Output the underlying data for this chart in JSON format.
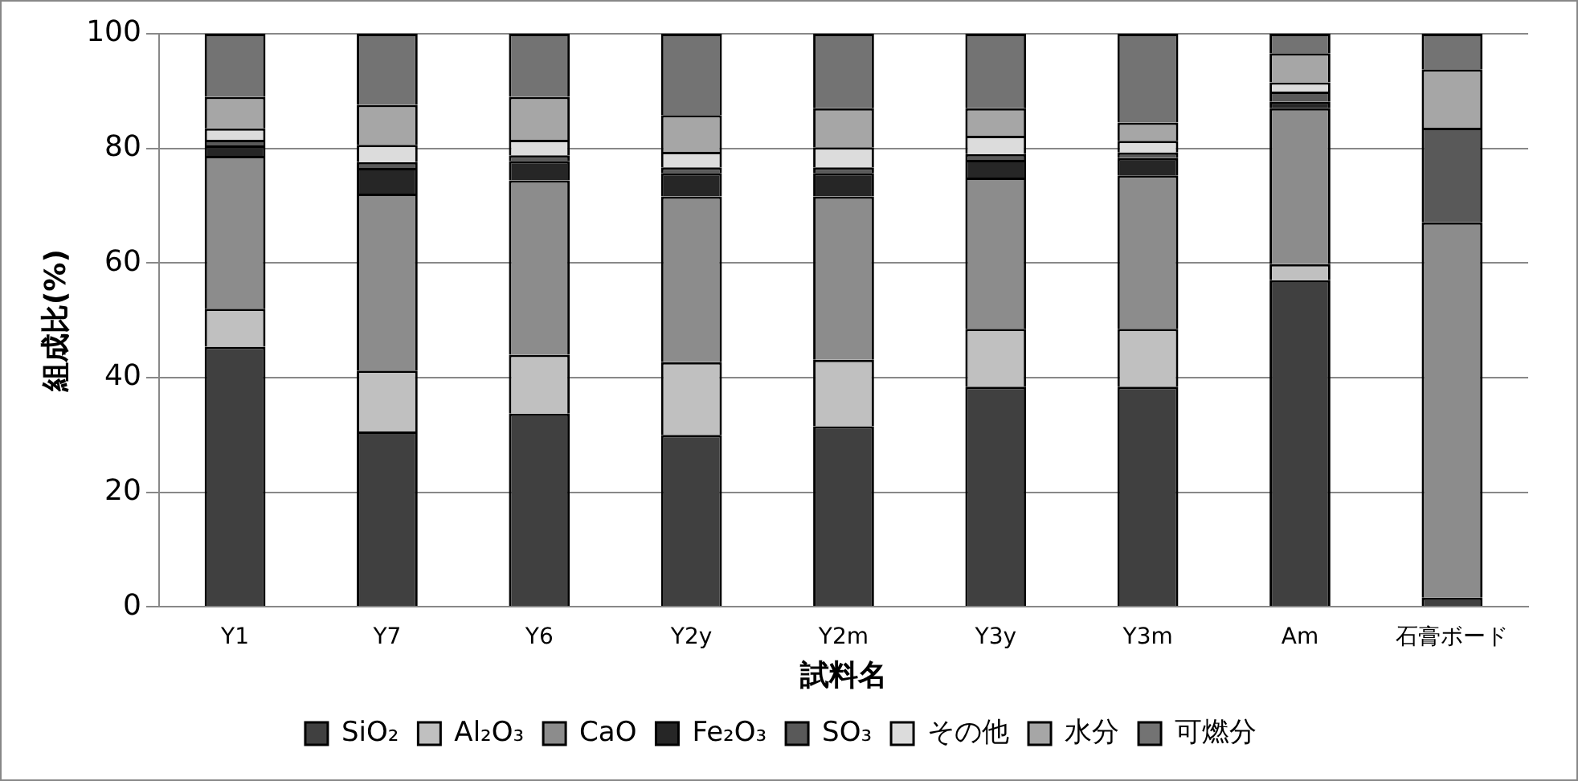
{
  "chart_data": {
    "type": "bar",
    "stacked": true,
    "xlabel": "試料名",
    "ylabel": "組成比(%)",
    "categories": [
      "Y1",
      "Y7",
      "Y6",
      "Y2y",
      "Y2m",
      "Y3y",
      "Y3m",
      "Am",
      "石膏ボード"
    ],
    "series": [
      {
        "name": "SiO₂",
        "color": "#404040",
        "values": [
          45.4,
          30.6,
          33.7,
          30.0,
          31.5,
          38.4,
          38.4,
          57.0,
          1.6
        ]
      },
      {
        "name": "Al₂O₃",
        "color": "#c0c0c0",
        "values": [
          6.6,
          10.6,
          10.3,
          12.7,
          11.6,
          10.1,
          10.1,
          2.8,
          0
        ]
      },
      {
        "name": "CaO",
        "color": "#8c8c8c",
        "values": [
          26.7,
          30.9,
          30.4,
          28.9,
          28.5,
          26.4,
          26.8,
          27.2,
          65.5
        ]
      },
      {
        "name": "Fe₂O₃",
        "color": "#262626",
        "values": [
          1.8,
          4.5,
          3.4,
          4.1,
          4.1,
          3.1,
          3.0,
          1.1,
          0
        ]
      },
      {
        "name": "SO₃",
        "color": "#595959",
        "values": [
          1.0,
          1.0,
          1.0,
          1.0,
          1.0,
          1.0,
          1.0,
          1.8,
          16.5
        ]
      },
      {
        "name": "その他",
        "color": "#dcdcdc",
        "values": [
          2.0,
          3.0,
          2.7,
          2.7,
          3.5,
          3.2,
          2.0,
          1.6,
          0
        ]
      },
      {
        "name": "水分",
        "color": "#a6a6a6",
        "values": [
          5.5,
          7.0,
          7.5,
          6.4,
          6.8,
          4.8,
          3.2,
          5.1,
          10.2
        ]
      },
      {
        "name": "可燃分",
        "color": "#737373",
        "values": [
          11.0,
          12.4,
          11.0,
          14.2,
          13.0,
          13.0,
          15.5,
          3.4,
          6.2
        ]
      }
    ],
    "ylim": [
      0,
      100
    ],
    "yticks": [
      0,
      20,
      40,
      60,
      80,
      100
    ],
    "grid": "y",
    "legend": "bottom"
  }
}
